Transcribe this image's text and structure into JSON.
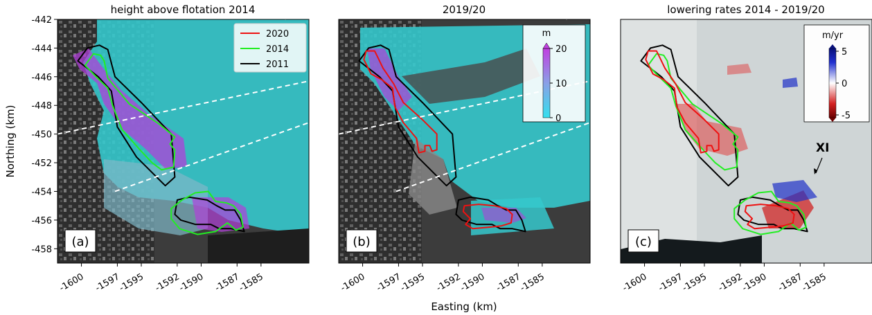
{
  "figure": {
    "xlabel": "Easting (km)",
    "ylabel": "Northing (km)"
  },
  "chart_data": [
    {
      "type": "map",
      "panel_label": "(a)",
      "title": "height above flotation 2014",
      "xlim": [
        -1602,
        -1581
      ],
      "ylim": [
        -459,
        -442
      ],
      "xticks": [
        -1600,
        -1597,
        -1595,
        -1592,
        -1590,
        -1587,
        -1585
      ],
      "yticks": [
        -458,
        -456,
        -454,
        -452,
        -450,
        -448,
        -446,
        -444,
        -442
      ],
      "legend": {
        "placement": "top-right",
        "entries": [
          {
            "label": "2020",
            "color": "#ee1111"
          },
          {
            "label": "2014",
            "color": "#22ee22"
          },
          {
            "label": "2011",
            "color": "#000000"
          }
        ]
      }
    },
    {
      "type": "map",
      "panel_label": "(b)",
      "title": "2019/20",
      "xlim": [
        -1602,
        -1581
      ],
      "ylim": [
        -459,
        -442
      ],
      "xticks": [
        -1600,
        -1597,
        -1595,
        -1592,
        -1590,
        -1587,
        -1585
      ],
      "colorbar": {
        "label": "m",
        "min": 0,
        "max": 20,
        "ticks": [
          0,
          10,
          20
        ],
        "colors": [
          "#33e0ee",
          "#b050e0"
        ],
        "extend": "max"
      }
    },
    {
      "type": "map",
      "panel_label": "(c)",
      "title": "lowering rates 2014 - 2019/20",
      "xlim": [
        -1602,
        -1581
      ],
      "ylim": [
        -459,
        -442
      ],
      "xticks": [
        -1600,
        -1597,
        -1595,
        -1592,
        -1590,
        -1587,
        -1585
      ],
      "colorbar": {
        "label": "m/yr",
        "min": -5,
        "max": 5,
        "ticks": [
          5,
          0,
          -5
        ],
        "colors": [
          "#6b0000",
          "#ffffff",
          "#08107a"
        ],
        "extend": "both"
      },
      "annotation": "XI"
    }
  ],
  "outlines": {
    "north_2011": [
      [
        -1599.5,
        -444.0
      ],
      [
        -1598.5,
        -443.8
      ],
      [
        -1597.8,
        -444.1
      ],
      [
        -1597.2,
        -446.0
      ],
      [
        -1595.0,
        -447.8
      ],
      [
        -1592.5,
        -450.0
      ],
      [
        -1592.2,
        -453.0
      ],
      [
        -1593.0,
        -453.6
      ],
      [
        -1595.4,
        -451.6
      ],
      [
        -1597.0,
        -449.5
      ],
      [
        -1597.5,
        -447.0
      ],
      [
        -1598.6,
        -446.0
      ],
      [
        -1600.3,
        -444.9
      ],
      [
        -1599.5,
        -444.0
      ]
    ],
    "north_2014": [
      [
        -1599.0,
        -444.4
      ],
      [
        -1598.4,
        -444.5
      ],
      [
        -1598.1,
        -444.9
      ],
      [
        -1597.8,
        -446.1
      ],
      [
        -1596.0,
        -447.9
      ],
      [
        -1593.5,
        -449.3
      ],
      [
        -1592.2,
        -450.2
      ],
      [
        -1592.6,
        -450.7
      ],
      [
        -1592.2,
        -451.1
      ],
      [
        -1592.3,
        -452.3
      ],
      [
        -1593.3,
        -452.5
      ],
      [
        -1594.1,
        -452.0
      ],
      [
        -1595.0,
        -451.2
      ],
      [
        -1596.6,
        -449.7
      ],
      [
        -1597.4,
        -448.0
      ],
      [
        -1597.8,
        -446.8
      ],
      [
        -1598.9,
        -445.9
      ],
      [
        -1599.7,
        -445.2
      ],
      [
        -1599.0,
        -444.4
      ]
    ],
    "north_2020": [
      [
        -1599.7,
        -444.2
      ],
      [
        -1599.0,
        -444.2
      ],
      [
        -1598.7,
        -444.7
      ],
      [
        -1598.3,
        -445.4
      ],
      [
        -1597.4,
        -446.5
      ],
      [
        -1596.6,
        -447.8
      ],
      [
        -1595.0,
        -449.0
      ],
      [
        -1593.8,
        -450.0
      ],
      [
        -1593.8,
        -451.1
      ],
      [
        -1594.2,
        -451.2
      ],
      [
        -1594.4,
        -450.8
      ],
      [
        -1594.8,
        -450.8
      ],
      [
        -1594.8,
        -451.2
      ],
      [
        -1595.3,
        -451.3
      ],
      [
        -1595.5,
        -450.3
      ],
      [
        -1596.6,
        -449.2
      ],
      [
        -1597.3,
        -448.1
      ],
      [
        -1597.5,
        -446.8
      ],
      [
        -1598.4,
        -446.2
      ],
      [
        -1599.3,
        -445.8
      ],
      [
        -1599.9,
        -444.8
      ],
      [
        -1599.7,
        -444.2
      ]
    ],
    "south_2011": [
      [
        -1592.0,
        -454.6
      ],
      [
        -1591.0,
        -454.4
      ],
      [
        -1589.5,
        -454.6
      ],
      [
        -1588.7,
        -455.0
      ],
      [
        -1588.0,
        -455.3
      ],
      [
        -1587.2,
        -455.3
      ],
      [
        -1586.7,
        -456.0
      ],
      [
        -1586.4,
        -456.8
      ],
      [
        -1587.5,
        -456.6
      ],
      [
        -1588.5,
        -456.6
      ],
      [
        -1589.2,
        -456.3
      ],
      [
        -1590.5,
        -456.3
      ],
      [
        -1591.7,
        -456.0
      ],
      [
        -1592.2,
        -455.6
      ],
      [
        -1592.0,
        -454.6
      ]
    ],
    "south_2014": [
      [
        -1591.6,
        -454.6
      ],
      [
        -1590.5,
        -454.1
      ],
      [
        -1589.4,
        -454.0
      ],
      [
        -1588.8,
        -454.7
      ],
      [
        -1587.9,
        -454.8
      ],
      [
        -1587.3,
        -455.0
      ],
      [
        -1586.7,
        -455.6
      ],
      [
        -1586.5,
        -456.5
      ],
      [
        -1587.1,
        -456.7
      ],
      [
        -1587.8,
        -456.2
      ],
      [
        -1588.8,
        -456.8
      ],
      [
        -1590.3,
        -457.0
      ],
      [
        -1591.8,
        -456.6
      ],
      [
        -1592.5,
        -455.9
      ],
      [
        -1592.5,
        -455.2
      ],
      [
        -1591.6,
        -454.6
      ]
    ],
    "south_2020": [
      [
        -1591.5,
        -455.0
      ],
      [
        -1590.3,
        -454.9
      ],
      [
        -1589.0,
        -455.0
      ],
      [
        -1588.0,
        -455.2
      ],
      [
        -1587.5,
        -455.6
      ],
      [
        -1587.6,
        -456.2
      ],
      [
        -1588.4,
        -456.4
      ],
      [
        -1589.5,
        -456.5
      ],
      [
        -1590.8,
        -456.6
      ],
      [
        -1591.4,
        -456.3
      ],
      [
        -1591.0,
        -455.9
      ],
      [
        -1591.6,
        -455.4
      ],
      [
        -1591.5,
        -455.0
      ]
    ],
    "dashed_lines": [
      [
        [
          -1602,
          -450.0
        ],
        [
          -1581,
          -446.3
        ]
      ],
      [
        [
          -1597.2,
          -454.0
        ],
        [
          -1581,
          -449.2
        ]
      ],
      [
        [
          -1583,
          -442.0
        ],
        [
          -1581,
          -441.4
        ]
      ]
    ]
  }
}
